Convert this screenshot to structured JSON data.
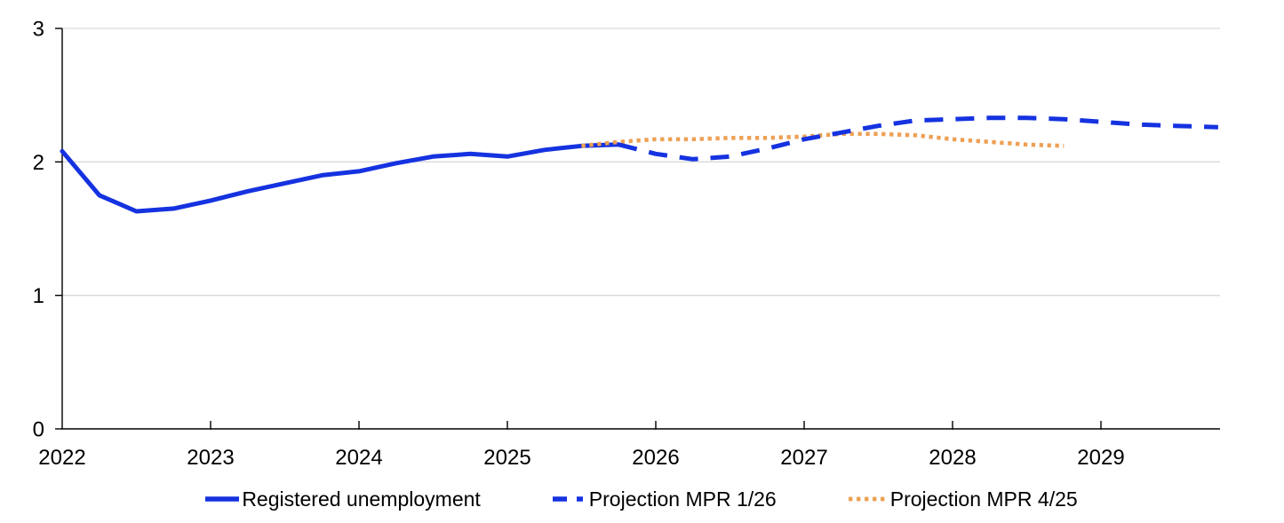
{
  "chart_data": {
    "type": "line",
    "title": "",
    "x_axis": {
      "range": [
        2022,
        2029.8
      ],
      "tick_values": [
        2022,
        2023,
        2024,
        2025,
        2026,
        2027,
        2028,
        2029
      ],
      "tick_labels": [
        "2022",
        "2023",
        "2024",
        "2025",
        "2026",
        "2027",
        "2028",
        "2029"
      ]
    },
    "y_axis": {
      "range": [
        0,
        3
      ],
      "tick_values": [
        0,
        1,
        2,
        3
      ],
      "tick_labels": [
        "0",
        "1",
        "2",
        "3"
      ]
    },
    "grid": "horizontal",
    "colors": {
      "blue": "#1532e0",
      "orange": "#eda055",
      "gridline": "#d9d9d9",
      "axis": "#000000",
      "text": "#000000"
    },
    "legend": {
      "position": "bottom"
    },
    "series": [
      {
        "name": "Registered unemployment",
        "style": "solid",
        "color": "#1532e0",
        "x": [
          2022.0,
          2022.25,
          2022.5,
          2022.75,
          2023.0,
          2023.25,
          2023.5,
          2023.75,
          2024.0,
          2024.25,
          2024.5,
          2024.75,
          2025.0,
          2025.25,
          2025.5,
          2025.75
        ],
        "values": [
          2.08,
          1.75,
          1.63,
          1.65,
          1.71,
          1.78,
          1.84,
          1.9,
          1.93,
          1.99,
          2.04,
          2.06,
          2.04,
          2.09,
          2.12,
          2.13
        ]
      },
      {
        "name": "Projection MPR 1/26",
        "style": "dashed",
        "color": "#1532e0",
        "x": [
          2025.75,
          2026.0,
          2026.25,
          2026.5,
          2026.75,
          2027.0,
          2027.25,
          2027.5,
          2027.75,
          2028.0,
          2028.25,
          2028.5,
          2028.75,
          2029.0,
          2029.25,
          2029.5,
          2029.79
        ],
        "values": [
          2.13,
          2.06,
          2.02,
          2.04,
          2.1,
          2.17,
          2.22,
          2.27,
          2.31,
          2.32,
          2.33,
          2.33,
          2.32,
          2.3,
          2.28,
          2.27,
          2.26
        ]
      },
      {
        "name": "Projection MPR 4/25",
        "style": "dotted",
        "color": "#eda055",
        "x": [
          2025.5,
          2025.75,
          2026.0,
          2026.25,
          2026.5,
          2026.75,
          2027.0,
          2027.25,
          2027.5,
          2027.75,
          2028.0,
          2028.25,
          2028.5,
          2028.75
        ],
        "values": [
          2.12,
          2.15,
          2.17,
          2.17,
          2.18,
          2.18,
          2.19,
          2.21,
          2.21,
          2.2,
          2.17,
          2.15,
          2.13,
          2.12
        ]
      }
    ]
  }
}
